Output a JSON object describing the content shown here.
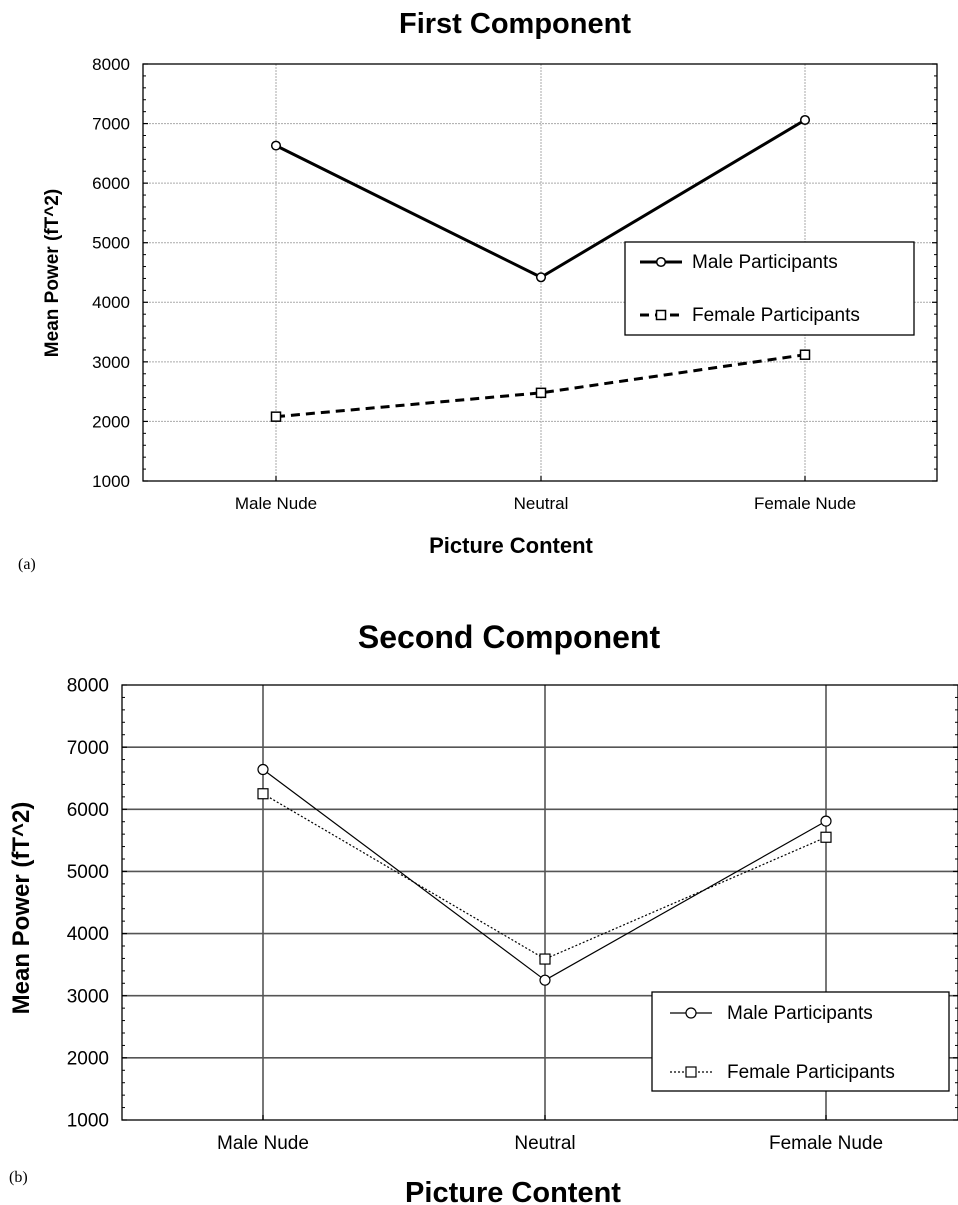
{
  "chart_data": [
    {
      "type": "line",
      "title": "First Component",
      "panel_label": "(a)",
      "xlabel": "Picture Content",
      "ylabel": "Mean Power (fT^2)",
      "categories": [
        "Male Nude",
        "Neutral",
        "Female Nude"
      ],
      "ylim": [
        1000,
        8000
      ],
      "yticks": [
        "1000",
        "2000",
        "3000",
        "4000",
        "5000",
        "6000",
        "7000",
        "8000"
      ],
      "grid": true,
      "legend_position": "right",
      "series": [
        {
          "name": "Male Participants",
          "values": [
            6630,
            4420,
            7060
          ],
          "marker": "circle",
          "line": "solid"
        },
        {
          "name": "Female Participants",
          "values": [
            2080,
            2480,
            3120
          ],
          "marker": "square",
          "line": "dashed"
        }
      ]
    },
    {
      "type": "line",
      "title": "Second Component",
      "panel_label": "(b)",
      "xlabel": "Picture Content",
      "ylabel": "Mean Power (fT^2)",
      "categories": [
        "Male Nude",
        "Neutral",
        "Female Nude"
      ],
      "ylim": [
        1000,
        8000
      ],
      "yticks": [
        "1000",
        "2000",
        "3000",
        "4000",
        "5000",
        "6000",
        "7000",
        "8000"
      ],
      "grid": true,
      "legend_position": "bottom-right",
      "series": [
        {
          "name": "Male Participants",
          "values": [
            6640,
            3250,
            5810
          ],
          "marker": "circle",
          "line": "solid"
        },
        {
          "name": "Female Participants",
          "values": [
            6250,
            3590,
            5550
          ],
          "marker": "square",
          "line": "dotted"
        }
      ]
    }
  ]
}
